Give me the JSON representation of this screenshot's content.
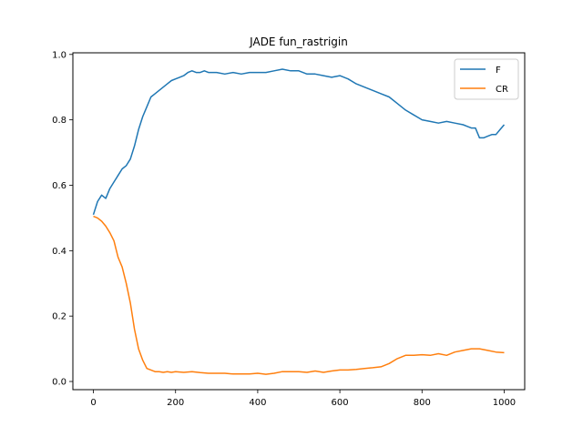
{
  "chart_data": {
    "type": "line",
    "title": "JADE fun_rastrigin",
    "xlabel": "",
    "ylabel": "",
    "xlim": [
      -50,
      1050
    ],
    "ylim": [
      -0.025,
      1.005
    ],
    "xticks": [
      0,
      200,
      400,
      600,
      800,
      1000
    ],
    "xtick_labels": [
      "0",
      "200",
      "400",
      "600",
      "800",
      "1000"
    ],
    "yticks": [
      0.0,
      0.2,
      0.4,
      0.6,
      0.8,
      1.0
    ],
    "ytick_labels": [
      "0.0",
      "0.2",
      "0.4",
      "0.6",
      "0.8",
      "1.0"
    ],
    "grid": false,
    "legend_position": "top-right",
    "series": [
      {
        "name": "F",
        "color": "#1f77b4",
        "x": [
          0,
          10,
          20,
          30,
          40,
          50,
          60,
          70,
          80,
          90,
          100,
          110,
          120,
          130,
          140,
          150,
          160,
          170,
          180,
          190,
          200,
          210,
          220,
          230,
          240,
          250,
          260,
          270,
          280,
          290,
          300,
          320,
          340,
          360,
          380,
          400,
          420,
          440,
          460,
          480,
          500,
          520,
          540,
          560,
          580,
          600,
          620,
          640,
          660,
          680,
          700,
          720,
          740,
          760,
          780,
          800,
          820,
          840,
          860,
          880,
          900,
          910,
          920,
          930,
          940,
          950,
          960,
          970,
          980,
          990,
          1000
        ],
        "y": [
          0.51,
          0.55,
          0.57,
          0.56,
          0.59,
          0.61,
          0.63,
          0.65,
          0.66,
          0.68,
          0.72,
          0.77,
          0.81,
          0.84,
          0.87,
          0.88,
          0.89,
          0.9,
          0.91,
          0.92,
          0.925,
          0.93,
          0.935,
          0.945,
          0.95,
          0.945,
          0.945,
          0.95,
          0.945,
          0.945,
          0.945,
          0.94,
          0.945,
          0.94,
          0.945,
          0.945,
          0.945,
          0.95,
          0.955,
          0.95,
          0.95,
          0.94,
          0.94,
          0.935,
          0.93,
          0.935,
          0.925,
          0.91,
          0.9,
          0.89,
          0.88,
          0.87,
          0.85,
          0.83,
          0.815,
          0.8,
          0.795,
          0.79,
          0.795,
          0.79,
          0.785,
          0.78,
          0.775,
          0.775,
          0.745,
          0.745,
          0.75,
          0.755,
          0.755,
          0.77,
          0.785
        ]
      },
      {
        "name": "CR",
        "color": "#ff7f0e",
        "x": [
          0,
          10,
          20,
          30,
          40,
          50,
          60,
          70,
          80,
          90,
          100,
          110,
          120,
          130,
          140,
          150,
          160,
          170,
          180,
          190,
          200,
          220,
          240,
          260,
          280,
          300,
          320,
          340,
          360,
          380,
          400,
          420,
          440,
          460,
          480,
          500,
          520,
          540,
          560,
          580,
          600,
          620,
          640,
          660,
          680,
          700,
          720,
          740,
          760,
          780,
          800,
          820,
          840,
          860,
          880,
          900,
          920,
          940,
          960,
          980,
          1000
        ],
        "y": [
          0.505,
          0.5,
          0.49,
          0.475,
          0.455,
          0.43,
          0.38,
          0.35,
          0.3,
          0.24,
          0.16,
          0.1,
          0.065,
          0.04,
          0.035,
          0.03,
          0.03,
          0.028,
          0.03,
          0.028,
          0.03,
          0.028,
          0.03,
          0.027,
          0.025,
          0.025,
          0.025,
          0.023,
          0.023,
          0.023,
          0.025,
          0.022,
          0.025,
          0.03,
          0.03,
          0.03,
          0.028,
          0.032,
          0.028,
          0.032,
          0.035,
          0.035,
          0.037,
          0.04,
          0.042,
          0.045,
          0.055,
          0.07,
          0.08,
          0.08,
          0.082,
          0.08,
          0.085,
          0.08,
          0.09,
          0.095,
          0.1,
          0.1,
          0.095,
          0.09,
          0.088
        ]
      }
    ]
  }
}
